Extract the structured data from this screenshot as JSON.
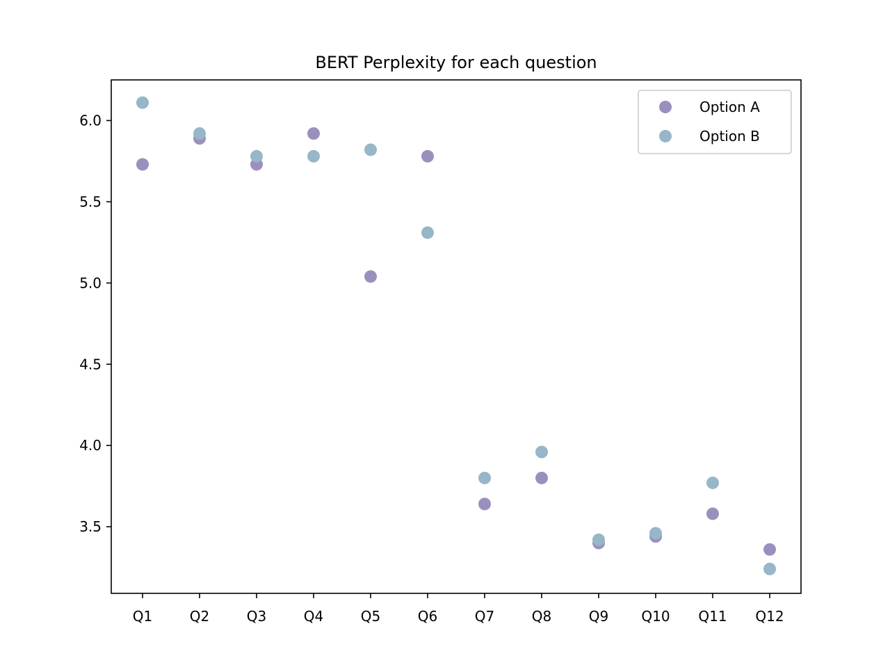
{
  "chart_data": {
    "type": "scatter",
    "title": "BERT Perplexity for each question",
    "xlabel": "",
    "ylabel": "",
    "categories": [
      "Q1",
      "Q2",
      "Q3",
      "Q4",
      "Q5",
      "Q6",
      "Q7",
      "Q8",
      "Q9",
      "Q10",
      "Q11",
      "Q12"
    ],
    "ylim": [
      3.09,
      6.25
    ],
    "yticks": [
      3.5,
      4.0,
      4.5,
      5.0,
      5.5,
      6.0
    ],
    "ytick_labels": [
      "3.5",
      "4.0",
      "4.5",
      "5.0",
      "5.5",
      "6.0"
    ],
    "grid": false,
    "legend_position": "top-right",
    "series": [
      {
        "name": "Option A",
        "color": "#9b90bd",
        "values": [
          5.73,
          5.89,
          5.73,
          5.92,
          5.04,
          5.78,
          3.64,
          3.8,
          3.4,
          3.44,
          3.58,
          3.36
        ]
      },
      {
        "name": "Option B",
        "color": "#97b6c8",
        "values": [
          6.11,
          5.92,
          5.78,
          5.78,
          5.82,
          5.31,
          3.8,
          3.96,
          3.42,
          3.46,
          3.77,
          3.24
        ]
      }
    ]
  }
}
